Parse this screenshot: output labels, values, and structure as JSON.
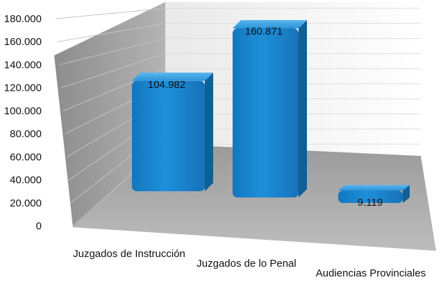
{
  "chart_data": {
    "type": "bar",
    "categories": [
      "Juzgados de Instrucción",
      "Juzgados de lo Penal",
      "Audiencias Provinciales"
    ],
    "values": [
      104982,
      160871,
      9119
    ],
    "value_labels": [
      "104.982",
      "160.871",
      "9.119"
    ],
    "ylim": [
      0,
      180000
    ],
    "yticks": [
      0,
      20000,
      40000,
      60000,
      80000,
      100000,
      120000,
      140000,
      160000,
      180000
    ],
    "ytick_labels": [
      "0",
      "20.000",
      "40.000",
      "60.000",
      "80.000",
      "100.000",
      "120.000",
      "140.000",
      "160.000",
      "180.000"
    ],
    "grid": true,
    "style": "3d",
    "colors": {
      "bar": "#1a86d0",
      "bar_top": "#4aa8e6",
      "bar_side": "#0f5f98",
      "left_wall": "#9e9e9e",
      "back_wall": "#f3f3f3",
      "floor": "#a7a7a7",
      "grid": "#c9c9c9"
    }
  }
}
